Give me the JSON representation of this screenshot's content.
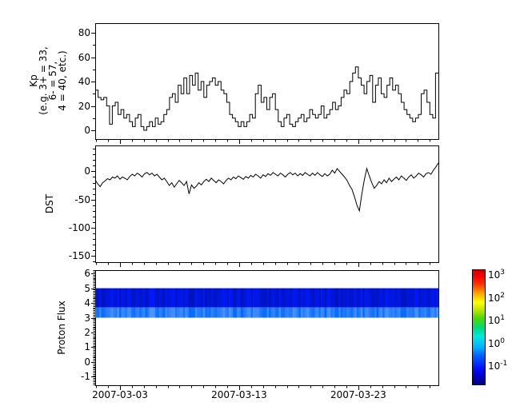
{
  "figure": {
    "background": "#ffffff",
    "frame_color": "#000000",
    "line_color": "#000000"
  },
  "x_axis": {
    "tick_labels": [
      "2007-03-03",
      "2007-03-13",
      "2007-03-23"
    ],
    "tick_days": [
      2.08,
      12.08,
      22.08
    ],
    "minor_day_offset": 0.08,
    "span_days": 28.8
  },
  "chart_data": [
    {
      "type": "line",
      "step": true,
      "name": "kp-index",
      "ylabel": "Kp\n(e.g. 3+ = 33,\n6- = 57,\n4 = 40, etc.)",
      "ylim": [
        -7.2,
        87.9
      ],
      "yticks_major": [
        0,
        20,
        40,
        60,
        80
      ],
      "yticks_minor": [
        10,
        30,
        50,
        70
      ],
      "grid": false,
      "values": [
        33,
        27,
        25,
        27,
        20,
        5,
        20,
        23,
        13,
        17,
        10,
        13,
        7,
        3,
        10,
        13,
        3,
        0,
        3,
        7,
        3,
        10,
        5,
        7,
        13,
        17,
        27,
        30,
        23,
        37,
        30,
        43,
        30,
        45,
        37,
        47,
        33,
        40,
        27,
        37,
        40,
        43,
        37,
        40,
        33,
        30,
        23,
        13,
        10,
        7,
        3,
        7,
        3,
        7,
        13,
        10,
        30,
        37,
        23,
        27,
        17,
        27,
        30,
        17,
        7,
        3,
        10,
        13,
        5,
        3,
        7,
        10,
        13,
        7,
        10,
        17,
        13,
        10,
        13,
        20,
        10,
        13,
        17,
        23,
        17,
        20,
        27,
        33,
        30,
        40,
        47,
        52,
        43,
        37,
        30,
        40,
        45,
        23,
        37,
        43,
        30,
        27,
        37,
        43,
        33,
        37,
        30,
        23,
        17,
        13,
        10,
        7,
        10,
        13,
        30,
        33,
        23,
        13,
        10,
        47
      ]
    },
    {
      "type": "line",
      "step": false,
      "name": "dst-index",
      "ylabel": "DST",
      "ylim": [
        -161,
        46
      ],
      "yticks_major": [
        0,
        -50,
        -100,
        -150
      ],
      "ytick_minor_step": 10,
      "grid": false,
      "values": [
        -15,
        -22,
        -27,
        -20,
        -17,
        -13,
        -15,
        -10,
        -12,
        -8,
        -14,
        -10,
        -12,
        -15,
        -9,
        -5,
        -8,
        -3,
        -6,
        -10,
        -4,
        -2,
        -6,
        -3,
        -8,
        -5,
        -10,
        -15,
        -12,
        -18,
        -25,
        -20,
        -28,
        -22,
        -16,
        -20,
        -25,
        -18,
        -40,
        -24,
        -30,
        -26,
        -20,
        -24,
        -18,
        -14,
        -18,
        -12,
        -16,
        -20,
        -15,
        -18,
        -22,
        -16,
        -12,
        -15,
        -10,
        -13,
        -8,
        -11,
        -14,
        -9,
        -12,
        -7,
        -10,
        -5,
        -8,
        -12,
        -6,
        -9,
        -4,
        -7,
        -2,
        -5,
        -8,
        -3,
        -6,
        -10,
        -5,
        -2,
        -6,
        -3,
        -8,
        -4,
        -7,
        -2,
        -5,
        -8,
        -3,
        -7,
        -2,
        -6,
        -9,
        -4,
        -8,
        -5,
        2,
        -3,
        5,
        0,
        -5,
        -10,
        -16,
        -25,
        -32,
        -45,
        -60,
        -70,
        -40,
        -15,
        5,
        -8,
        -20,
        -30,
        -25,
        -18,
        -22,
        -15,
        -20,
        -12,
        -18,
        -14,
        -10,
        -15,
        -8,
        -12,
        -16,
        -10,
        -6,
        -12,
        -8,
        -3,
        -6,
        -10,
        -4,
        -2,
        -5,
        2,
        8,
        15
      ]
    },
    {
      "type": "heatmap",
      "name": "proton-flux-spectrogram",
      "ylabel": "Proton Flux",
      "ylim": [
        -1.57,
        6.22
      ],
      "yticks_major": [
        -1,
        0,
        1,
        2,
        3,
        4,
        5,
        6
      ],
      "ytick_minor_step": 0.1,
      "band": {
        "ymin": 3,
        "ymax": 5,
        "split": 3.7
      },
      "band_palette": {
        "top_hue": 234,
        "bottom_hue": 216
      },
      "columns": [
        0.3,
        0.7,
        0.2,
        0.5,
        0.9,
        0.4,
        0.1,
        0.6,
        0.8,
        0.3,
        0.5,
        0.2,
        0.7,
        0.4,
        0.95,
        0.3,
        0.6,
        0.1,
        0.5,
        0.8,
        0.35,
        0.65,
        0.25,
        0.55,
        0.15,
        0.75,
        0.45,
        0.85,
        0.3,
        0.6,
        0.2,
        0.5,
        0.9,
        0.4,
        0.7,
        0.1,
        0.55,
        0.35,
        0.8,
        0.25,
        0.65,
        0.45,
        0.15,
        0.7,
        0.5,
        0.3,
        0.85,
        0.2,
        0.6,
        0.4,
        0.75,
        0.1,
        0.5,
        0.9,
        0.3,
        0.65,
        0.25,
        0.55,
        0.8,
        0.35,
        0.15,
        0.7,
        0.45,
        0.6,
        0.2,
        0.85,
        0.4,
        0.1,
        0.75,
        0.3,
        0.55,
        0.65,
        0.25,
        0.9,
        0.5,
        0.35,
        0.7,
        0.15,
        0.6,
        0.45,
        0.8,
        0.2,
        0.5,
        0.3,
        0.65,
        0.4
      ]
    },
    {
      "type": "colorbar",
      "name": "flux-colorbar",
      "scale": "log",
      "tick_exponents": [
        3,
        2,
        1,
        0,
        -1
      ],
      "tick_base": "10",
      "log_range": [
        -1.84,
        3.18
      ],
      "minor_step_decades": 0.1,
      "colormap": "jet",
      "gradient_stops": [
        [
          0,
          "#000080"
        ],
        [
          0.08,
          "#0000d0"
        ],
        [
          0.14,
          "#0010ff"
        ],
        [
          0.25,
          "#0060ff"
        ],
        [
          0.33,
          "#00b4ff"
        ],
        [
          0.42,
          "#00e8e0"
        ],
        [
          0.5,
          "#00dc70"
        ],
        [
          0.58,
          "#50d800"
        ],
        [
          0.66,
          "#c8e800"
        ],
        [
          0.72,
          "#ffff00"
        ],
        [
          0.8,
          "#ffa000"
        ],
        [
          0.88,
          "#ff3000"
        ],
        [
          0.94,
          "#ff0000"
        ],
        [
          1,
          "#cc0000"
        ]
      ]
    }
  ]
}
